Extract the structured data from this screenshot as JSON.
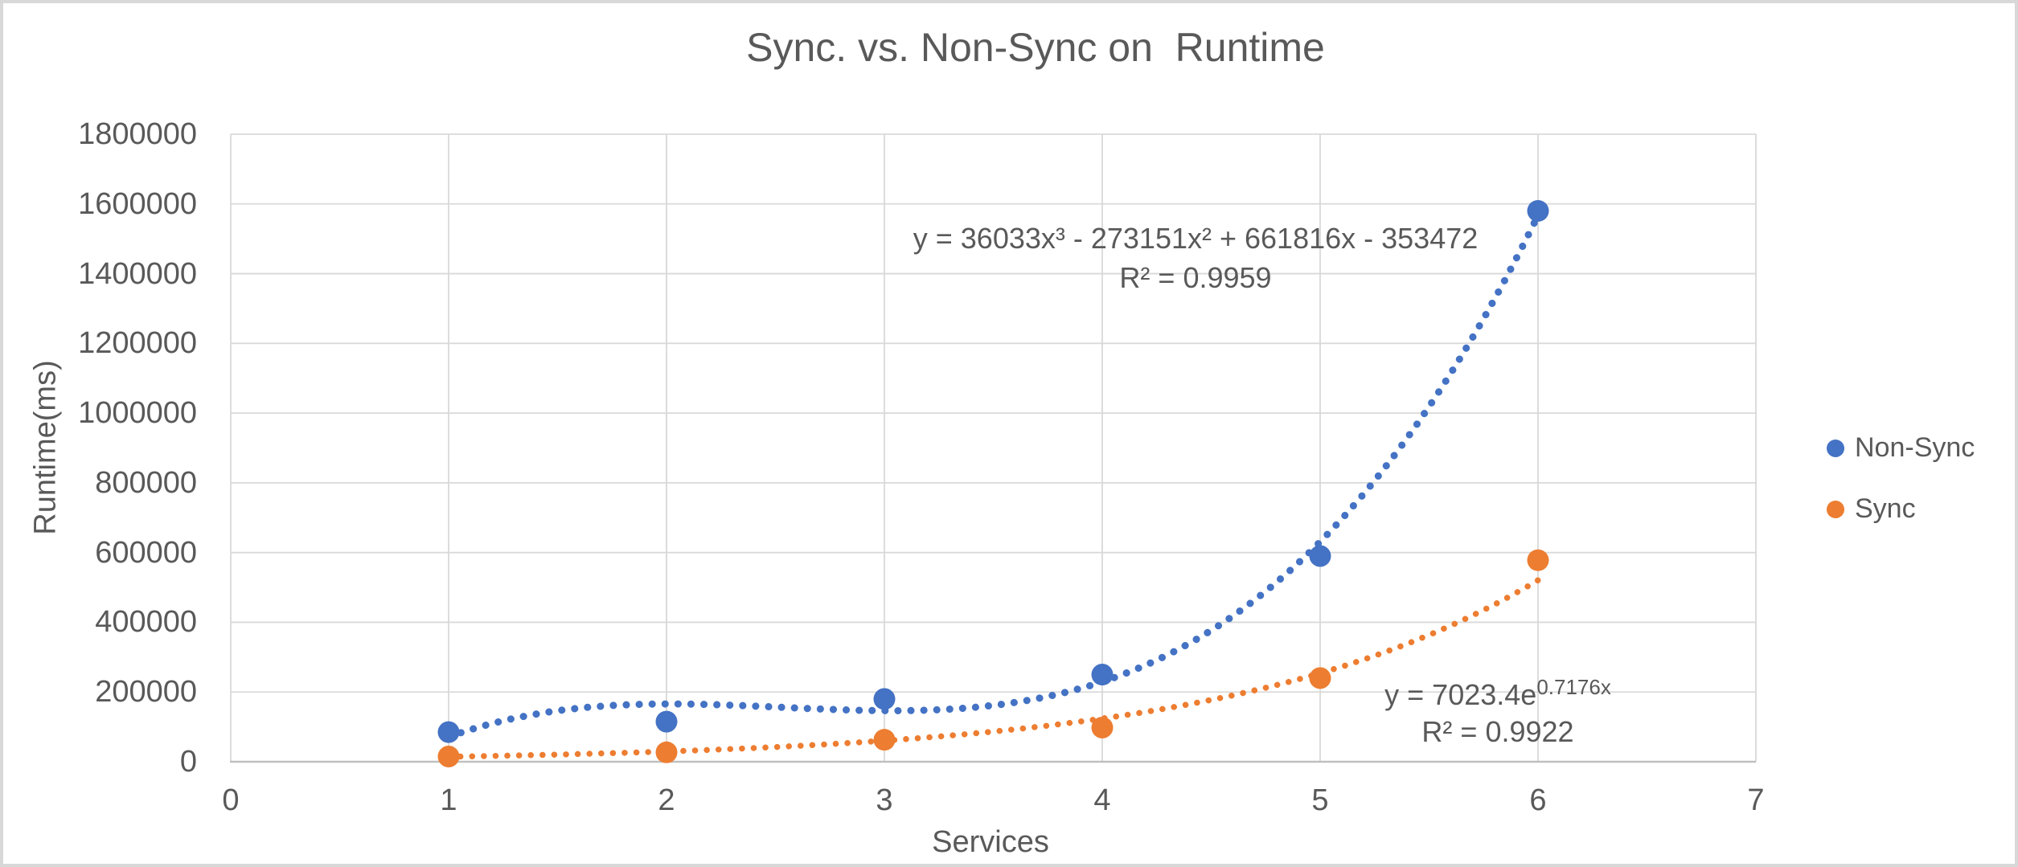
{
  "chart_data": {
    "type": "scatter",
    "title": "Sync. vs. Non-Sync on  Runtime",
    "xlabel": "Services",
    "ylabel": "Runtime(ms)",
    "xlim": [
      0,
      7
    ],
    "ylim": [
      0,
      1800000
    ],
    "x_ticks": [
      0,
      1,
      2,
      3,
      4,
      5,
      6,
      7
    ],
    "y_ticks": [
      0,
      200000,
      400000,
      600000,
      800000,
      1000000,
      1200000,
      1400000,
      1600000,
      1800000
    ],
    "grid": true,
    "legend_position": "right",
    "x": [
      1,
      2,
      3,
      4,
      5,
      6
    ],
    "series": [
      {
        "name": "Non-Sync",
        "color": "#4472C4",
        "values": [
          85000,
          115000,
          180000,
          250000,
          590000,
          1580000
        ],
        "trendline": {
          "type": "polynomial",
          "degree": 3,
          "coefficients": [
            36033,
            -273151,
            661816,
            -353472
          ],
          "r_squared": 0.9959,
          "style": "dotted",
          "equation_label": "y = 36033x³ - 273151x² + 661816x - 353472",
          "r2_label": "R² = 0.9959"
        }
      },
      {
        "name": "Sync",
        "color": "#ED7D31",
        "values": [
          15000,
          27000,
          63000,
          98000,
          240000,
          578000
        ],
        "trendline": {
          "type": "exponential",
          "a": 7023.4,
          "b": 0.7176,
          "r_squared": 0.9922,
          "style": "dotted",
          "equation_base": "y = 7023.4e",
          "equation_exponent": "0.7176x",
          "r2_label": "R² = 0.9922"
        }
      }
    ]
  },
  "colors": {
    "grid": "#D9D9D9",
    "axis": "#BFBFBF",
    "text": "#595959",
    "frame_border": "#D8D8D8",
    "non_sync": "#4472C4",
    "sync": "#ED7D31"
  }
}
